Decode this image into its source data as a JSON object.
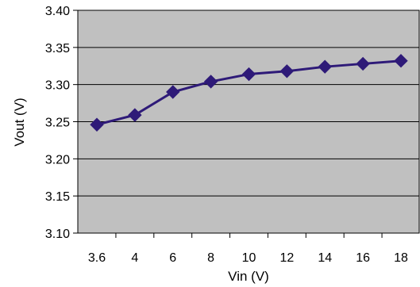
{
  "chart_data": {
    "type": "line",
    "title": "",
    "xlabel": "Vin (V)",
    "ylabel": "Vout (V)",
    "x_tick_labels": [
      "3.6",
      "4",
      "6",
      "8",
      "10",
      "12",
      "14",
      "16",
      "18"
    ],
    "y_tick_labels": [
      "3.10",
      "3.15",
      "3.20",
      "3.25",
      "3.30",
      "3.35",
      "3.40"
    ],
    "ylim": [
      3.1,
      3.4
    ],
    "grid": {
      "horizontal": true,
      "vertical": false
    },
    "series": [
      {
        "values": [
          3.246,
          3.259,
          3.29,
          3.304,
          3.314,
          3.318,
          3.324,
          3.328,
          3.332
        ],
        "line_color": "#2E1A78",
        "marker": "diamond"
      }
    ],
    "plot_background": "#C0C0C0"
  }
}
